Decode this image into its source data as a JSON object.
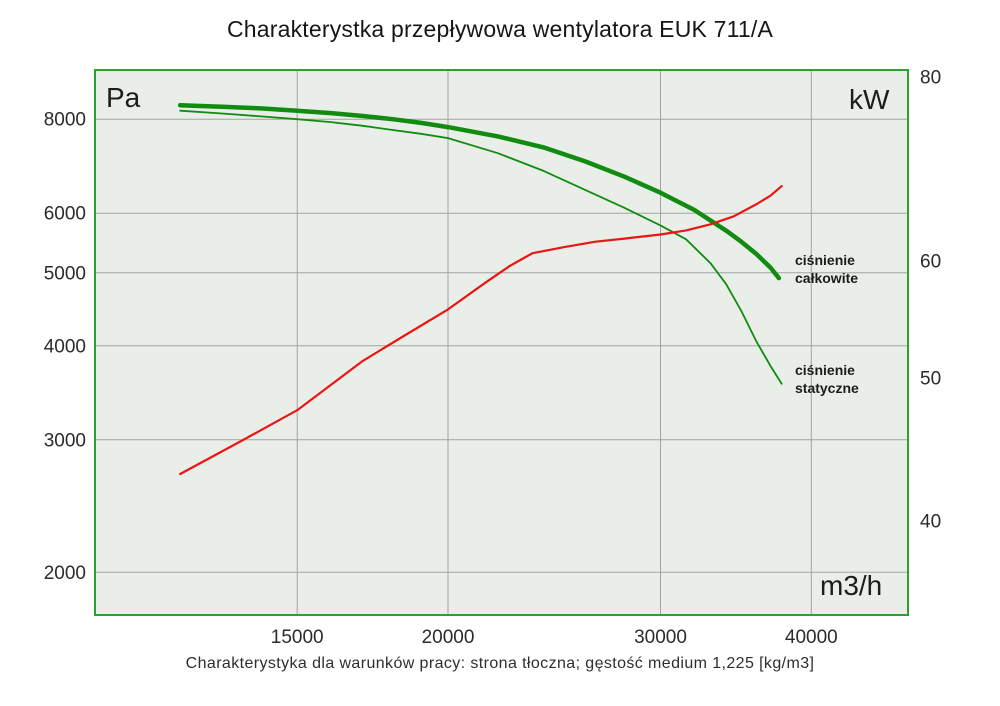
{
  "title": "Charakterystka przepływowa wentylatora EUK 711/A",
  "caption": "Charakterystyka dla warunków pracy: strona tłoczna; gęstość medium 1,225 [kg/m3]",
  "units": {
    "pressure": "Pa",
    "power": "kW",
    "flow": "m3/h"
  },
  "annotations": {
    "total_line1": "ciśnienie",
    "total_line2": "całkowite",
    "static_line1": "ciśnienie",
    "static_line2": "statyczne"
  },
  "colors": {
    "plot_bg": "#e9eee8",
    "border": "#2da02d",
    "grid": "#a3a3a3",
    "tick_text": "#2b2b2b",
    "curve_green": "#118c11",
    "curve_red": "#ec1515"
  },
  "chart_data": {
    "type": "line",
    "title": "Charakterystka przepływowa wentylatora EUK 711/A",
    "grid": "horizontal lines at left-axis ticks, vertical lines at x-axis ticks",
    "x_axis": {
      "label": "m3/h",
      "scale": "log",
      "min": 10200,
      "max": 48100,
      "ticks": [
        15000,
        20000,
        30000,
        40000
      ]
    },
    "y_axis_left": {
      "label": "Pa",
      "scale": "log",
      "min": 1755,
      "max": 9300,
      "ticks": [
        8000,
        6000,
        5000,
        4000,
        3000,
        2000
      ]
    },
    "y_axis_right": {
      "label": "kW",
      "scale": "log",
      "min": 34.5,
      "max": 80.8,
      "ticks": [
        80,
        60,
        50,
        40
      ]
    },
    "series": [
      {
        "id": "total-pressure",
        "name": "ciśnienie całkowite",
        "axis": "left",
        "color": "#118c11",
        "stroke_width": 4.5,
        "x": [
          12000,
          13000,
          14000,
          15000,
          16000,
          17000,
          18000,
          19000,
          20000,
          22000,
          24000,
          26000,
          28000,
          30000,
          32000,
          34000,
          35000,
          36000,
          37000,
          37600
        ],
        "values": [
          8350,
          8310,
          8270,
          8210,
          8150,
          8080,
          8000,
          7910,
          7810,
          7590,
          7340,
          7030,
          6710,
          6390,
          6060,
          5690,
          5500,
          5300,
          5080,
          4920
        ]
      },
      {
        "id": "static-pressure",
        "name": "ciśnienie statyczne",
        "axis": "left",
        "color": "#118c11",
        "stroke_width": 1.8,
        "x": [
          12000,
          13000,
          14000,
          15000,
          16000,
          17000,
          18000,
          19000,
          20000,
          22000,
          24000,
          26000,
          28000,
          30000,
          31500,
          33000,
          34000,
          35000,
          36000,
          37000,
          37800
        ],
        "values": [
          8210,
          8140,
          8070,
          8000,
          7930,
          7840,
          7740,
          7650,
          7550,
          7210,
          6830,
          6440,
          6100,
          5780,
          5540,
          5150,
          4830,
          4450,
          4060,
          3760,
          3560
        ]
      },
      {
        "id": "power",
        "name": "",
        "axis": "right",
        "color": "#ec1515",
        "stroke_width": 2.2,
        "x": [
          12000,
          13500,
          15000,
          17000,
          18500,
          20000,
          21500,
          22500,
          23500,
          25000,
          26500,
          28000,
          30000,
          31500,
          33000,
          34500,
          36000,
          37000,
          37800
        ],
        "values": [
          43.0,
          45.3,
          47.5,
          51.3,
          53.5,
          55.6,
          58.0,
          59.5,
          60.7,
          61.3,
          61.8,
          62.1,
          62.5,
          62.9,
          63.5,
          64.3,
          65.5,
          66.4,
          67.4
        ]
      }
    ]
  }
}
